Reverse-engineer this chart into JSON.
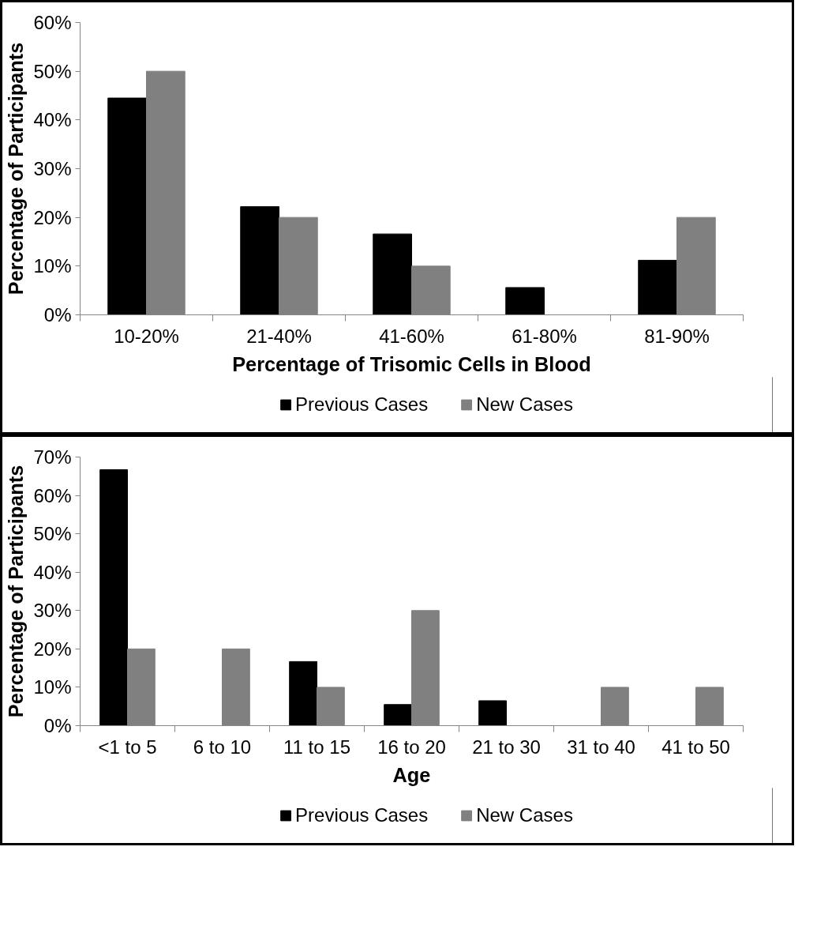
{
  "chart_data": [
    {
      "type": "bar",
      "xlabel": "Percentage of Trisomic Cells in Blood",
      "ylabel": "Percentage of Participants",
      "categories": [
        "10-20%",
        "21-40%",
        "41-60%",
        "61-80%",
        "81-90%"
      ],
      "series": [
        {
          "name": "Previous Cases",
          "color": "#000000",
          "values": [
            44.5,
            22.2,
            16.6,
            5.6,
            11.2
          ]
        },
        {
          "name": "New Cases",
          "color": "#808080",
          "values": [
            50,
            20,
            10,
            0,
            20
          ]
        }
      ],
      "ylim": [
        0,
        60
      ],
      "yticks": [
        {
          "value": 0,
          "label": "0%"
        },
        {
          "value": 10,
          "label": "10%"
        },
        {
          "value": 20,
          "label": "20%"
        },
        {
          "value": 30,
          "label": "30%"
        },
        {
          "value": 40,
          "label": "40%"
        },
        {
          "value": 50,
          "label": "50%"
        },
        {
          "value": 60,
          "label": "60%"
        }
      ],
      "grid": false,
      "legend": "bottom"
    },
    {
      "type": "bar",
      "xlabel": "Age",
      "ylabel": "Percentage of Participants",
      "categories": [
        "<1 to 5",
        "6 to 10",
        "11 to 15",
        "16 to 20",
        "21 to 30",
        "31 to 40",
        "41 to 50"
      ],
      "series": [
        {
          "name": "Previous Cases",
          "color": "#000000",
          "values": [
            66.7,
            0,
            16.7,
            5.5,
            6.5,
            0,
            0
          ]
        },
        {
          "name": "New Cases",
          "color": "#808080",
          "values": [
            20,
            20,
            10,
            30,
            0,
            10,
            10
          ]
        }
      ],
      "ylim": [
        0,
        70
      ],
      "yticks": [
        {
          "value": 0,
          "label": "0%"
        },
        {
          "value": 10,
          "label": "10%"
        },
        {
          "value": 20,
          "label": "20%"
        },
        {
          "value": 30,
          "label": "30%"
        },
        {
          "value": 40,
          "label": "40%"
        },
        {
          "value": 50,
          "label": "50%"
        },
        {
          "value": 60,
          "label": "60%"
        },
        {
          "value": 70,
          "label": "70%"
        }
      ],
      "grid": false,
      "legend": "bottom"
    }
  ]
}
